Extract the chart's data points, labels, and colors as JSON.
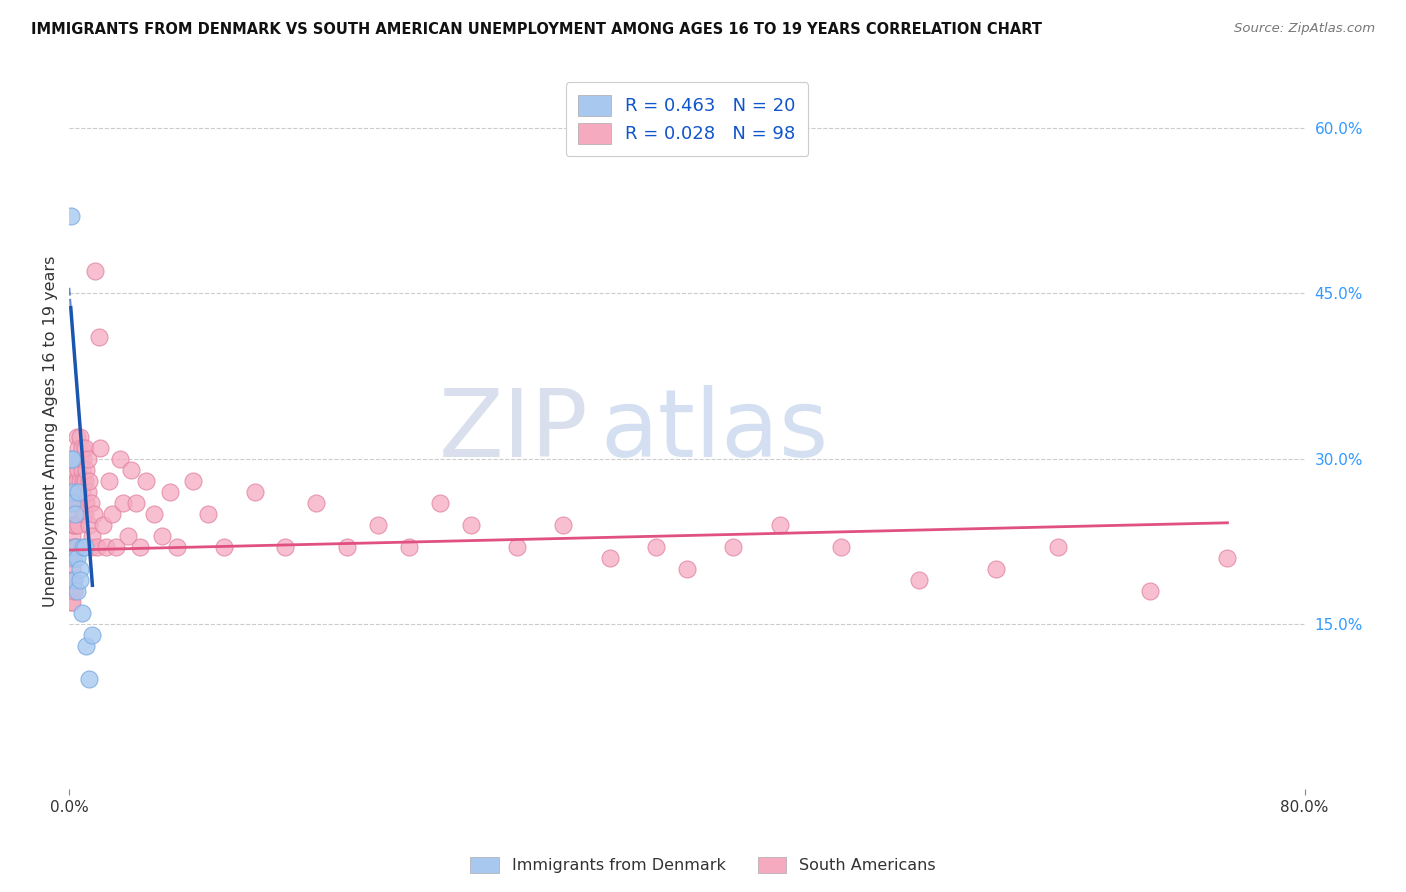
{
  "title": "IMMIGRANTS FROM DENMARK VS SOUTH AMERICAN UNEMPLOYMENT AMONG AGES 16 TO 19 YEARS CORRELATION CHART",
  "source": "Source: ZipAtlas.com",
  "ylabel": "Unemployment Among Ages 16 to 19 years",
  "xlim": [
    0.0,
    0.8
  ],
  "ylim": [
    0.0,
    0.65
  ],
  "ytick_right_labels": [
    "60.0%",
    "45.0%",
    "30.0%",
    "15.0%"
  ],
  "ytick_right_values": [
    0.6,
    0.45,
    0.3,
    0.15
  ],
  "denmark_R": 0.463,
  "denmark_N": 20,
  "sa_R": 0.028,
  "sa_N": 98,
  "denmark_color": "#a8c8f0",
  "denmark_edge_color": "#7aaae0",
  "denmark_line_color": "#1a56b0",
  "sa_color": "#f5aac0",
  "sa_edge_color": "#e080a0",
  "sa_line_color": "#e05080",
  "denmark_x": [
    0.001,
    0.001,
    0.002,
    0.002,
    0.002,
    0.003,
    0.003,
    0.004,
    0.004,
    0.005,
    0.005,
    0.006,
    0.007,
    0.007,
    0.008,
    0.009,
    0.01,
    0.011,
    0.013,
    0.015
  ],
  "denmark_y": [
    0.52,
    0.3,
    0.3,
    0.27,
    0.26,
    0.21,
    0.19,
    0.25,
    0.22,
    0.21,
    0.18,
    0.27,
    0.2,
    0.19,
    0.16,
    0.22,
    0.22,
    0.13,
    0.1,
    0.14
  ],
  "sa_x": [
    0.001,
    0.001,
    0.001,
    0.001,
    0.001,
    0.002,
    0.002,
    0.002,
    0.002,
    0.002,
    0.002,
    0.002,
    0.003,
    0.003,
    0.003,
    0.003,
    0.003,
    0.003,
    0.004,
    0.004,
    0.004,
    0.004,
    0.005,
    0.005,
    0.005,
    0.005,
    0.005,
    0.006,
    0.006,
    0.006,
    0.006,
    0.007,
    0.007,
    0.007,
    0.007,
    0.008,
    0.008,
    0.008,
    0.009,
    0.009,
    0.009,
    0.01,
    0.01,
    0.01,
    0.011,
    0.011,
    0.012,
    0.012,
    0.013,
    0.013,
    0.014,
    0.014,
    0.015,
    0.016,
    0.017,
    0.018,
    0.019,
    0.02,
    0.022,
    0.024,
    0.026,
    0.028,
    0.03,
    0.033,
    0.035,
    0.038,
    0.04,
    0.043,
    0.046,
    0.05,
    0.055,
    0.06,
    0.065,
    0.07,
    0.08,
    0.09,
    0.1,
    0.12,
    0.14,
    0.16,
    0.18,
    0.2,
    0.22,
    0.24,
    0.26,
    0.29,
    0.32,
    0.35,
    0.38,
    0.4,
    0.43,
    0.46,
    0.5,
    0.55,
    0.6,
    0.64,
    0.7,
    0.75
  ],
  "sa_y": [
    0.22,
    0.21,
    0.19,
    0.18,
    0.17,
    0.26,
    0.24,
    0.23,
    0.21,
    0.2,
    0.19,
    0.17,
    0.28,
    0.27,
    0.25,
    0.24,
    0.22,
    0.18,
    0.29,
    0.27,
    0.24,
    0.22,
    0.32,
    0.3,
    0.28,
    0.26,
    0.22,
    0.31,
    0.29,
    0.27,
    0.24,
    0.32,
    0.3,
    0.28,
    0.26,
    0.31,
    0.29,
    0.27,
    0.3,
    0.28,
    0.25,
    0.31,
    0.28,
    0.25,
    0.29,
    0.26,
    0.3,
    0.27,
    0.28,
    0.24,
    0.26,
    0.22,
    0.23,
    0.25,
    0.47,
    0.22,
    0.41,
    0.31,
    0.24,
    0.22,
    0.28,
    0.25,
    0.22,
    0.3,
    0.26,
    0.23,
    0.29,
    0.26,
    0.22,
    0.28,
    0.25,
    0.23,
    0.27,
    0.22,
    0.28,
    0.25,
    0.22,
    0.27,
    0.22,
    0.26,
    0.22,
    0.24,
    0.22,
    0.26,
    0.24,
    0.22,
    0.24,
    0.21,
    0.22,
    0.2,
    0.22,
    0.24,
    0.22,
    0.19,
    0.2,
    0.22,
    0.18,
    0.21
  ],
  "watermark_zip": "ZIP",
  "watermark_atlas": "atlas",
  "background_color": "#ffffff",
  "grid_color": "#cccccc"
}
